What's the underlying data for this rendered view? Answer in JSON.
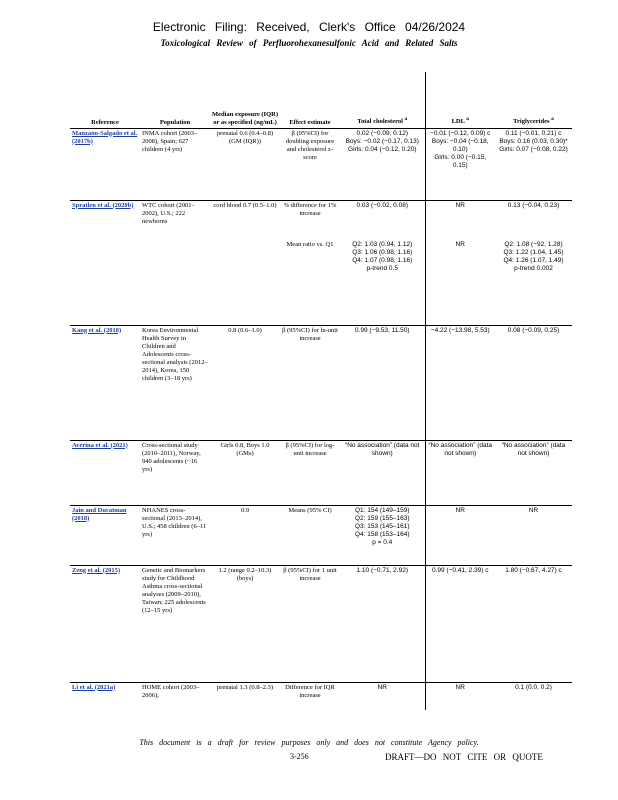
{
  "header": {
    "line1": "Electronic Filing: Received, Clerk's Office 04/26/2024",
    "line2": "Toxicological Review of Perfluorohexanesulfonic Acid and Related Salts"
  },
  "table": {
    "columns": [
      {
        "label": "Reference"
      },
      {
        "label": "Population"
      },
      {
        "label": "Median exposure (IQR) or as specified (ng/mL)"
      },
      {
        "label": "Effect estimate"
      },
      {
        "label": "Total cholesterol",
        "note": "a"
      },
      {
        "label": "LDL",
        "note": "a"
      },
      {
        "label": "Triglycerides",
        "note": "a"
      }
    ],
    "rows": [
      {
        "reference": "Manzano-Salgado et al. (2017b)",
        "population": "INMA cohort (2003–2008), Spain; 627 children (4 yrs)",
        "exposure": "prenatal 0.6 (0.4–0.8) (GM (IQR))",
        "effect": "β (95%CI) for doubling exposure and cholesterol z-score",
        "cholesterol": [
          "0.02 (−0.09, 0.12)",
          "Boys: −0.02 (−0.17, 0.13)",
          "Girls: 0.04 (−0.12, 0.20)"
        ],
        "ldl": [
          "−0.01 (−0.12, 0.09) c",
          "Boys: −0.04 (−0.18, 0.10)",
          "Girls: 0.00 (−0.15, 0.15)"
        ],
        "triglycerides": [
          "0.11 (−0.01, 0.21) c",
          "Boys: 0.16 (0.03, 0.30)*",
          "Girls: 0.07 (−0.08, 0.22)"
        ]
      },
      {
        "reference": "Spratlen et al. (2020b)",
        "population": "WTC cohort (2001–2002), U.S.; 222 newborns",
        "exposure": "cord blood 0.7 (0.5–1.0)",
        "effect": "% difference for 1% increase",
        "cholesterol": "0.03 (−0.02, 0.08)",
        "ldl": "NR",
        "triglycerides": "0.13 (−0.04, 0.23)"
      },
      {
        "effect": "Mean ratio vs. Q1",
        "cholesterol": [
          "Q2: 1.03 (0.94, 1.12)",
          "Q3: 1.06 (0.98, 1.16)",
          "Q4: 1.07 (0.98, 1.16)",
          "p-trend 0.5"
        ],
        "ldl": "NR",
        "triglycerides": [
          "Q2: 1.08 (−92, 1.28)",
          "Q3: 1.22 (1.04, 1.45)",
          "Q4: 1.26 (1.07, 1.49)",
          "p-trend 0.002"
        ]
      },
      {
        "reference": "Kang et al. (2018)",
        "population": "Korea Environmental Health Survey in Children and Adolescents cross-sectional analysis (2012–2014), Korea, 150 children (3–18 yrs)",
        "exposure": "0.8 (0.6–1.0)",
        "effect": "β (95%CI) for ln-unit increase",
        "cholesterol": "0.99 (−9.53, 11.50)",
        "ldl": "−4.22 (−13.98, 5.53)",
        "triglycerides": "0.08 (−0.09, 0.25)"
      },
      {
        "reference": "Averina et al. (2021)",
        "population": "Cross-sectional study (2010–2011), Norway, 940 adolescents (~16 yrs)",
        "exposure": "Girls 0.8, Boys 1.0 (GMs)",
        "effect": "β (95%CI) for log-unit increase",
        "cholesterol": "“No association” (data not shown)",
        "ldl": "“No association” (data not shown)",
        "triglycerides": "“No association” (data not shown)"
      },
      {
        "reference": "Jain and Ducatman (2018)",
        "population": "NHANES cross-sectional (2013–2014), U.S.; 458 children (6–11 yrs)",
        "exposure": "0.9",
        "effect": "Means (95% CI)",
        "cholesterol": [
          "Q1: 154 (149–159)",
          "Q2: 159 (155–163)",
          "Q3: 153 (145–161)",
          "Q4: 158 (153–164)",
          "p = 0.4"
        ],
        "ldl": "NR",
        "triglycerides": "NR"
      },
      {
        "reference": "Zeng et al. (2015)",
        "population": "Genetic and Biomarkers study for Childhood Asthma cross-sectional analyses (2009–2010), Taiwan; 225 adolescents (12–15 yrs)",
        "exposure": "1.2 (range 0.2–10.3) (boys)",
        "effect": "β (95%CI) for 1 unit increase",
        "cholesterol": "1.10 (−0.71, 2.92)",
        "ldl": "0.99 (−0.41, 2.39) c",
        "triglycerides": "1.80 (−0.67, 4.27) c"
      },
      {
        "reference": "Li et al. (2021a)",
        "population": "HOME cohort (2003–2006);",
        "exposure": "prenatal 1.3 (0.8–2.3)",
        "effect": "Difference for IQR increase",
        "cholesterol": "NR",
        "ldl": "NR",
        "triglycerides": "0.1 (0.0, 0.2)"
      }
    ]
  },
  "footer": {
    "disclaimer": "This document is a draft for review purposes only and does not constitute Agency policy.",
    "page": "3-256",
    "draft": "DRAFT—DO NOT CITE OR QUOTE"
  }
}
